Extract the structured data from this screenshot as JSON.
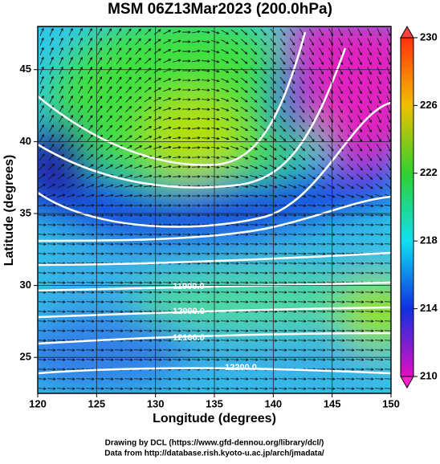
{
  "header": {
    "title": "MSM 06Z13Mar2023 (200.0hPa)"
  },
  "map": {
    "x_label": "Longitude (degrees)",
    "y_label": "Latitude  (degrees)",
    "xlim": [
      120,
      150
    ],
    "ylim": [
      22.5,
      48
    ],
    "xticks": [
      120,
      125,
      130,
      135,
      140,
      145,
      150
    ],
    "yticks": [
      25,
      30,
      35,
      40,
      45
    ],
    "grid": true,
    "contour_labels": [
      "11900.0",
      "12000.0",
      "12100.0",
      "12200.0"
    ]
  },
  "colorbar": {
    "lim": [
      210,
      230
    ],
    "ticks": [
      210,
      214,
      218,
      222,
      226,
      230
    ]
  },
  "footer": {
    "lines": [
      "Drawing by DCL (https://www.gfd-dennou.org/library/dcl/)",
      "Data from http://database.rish.kyoto-u.ac.jp/arch/jmadata/"
    ]
  }
}
